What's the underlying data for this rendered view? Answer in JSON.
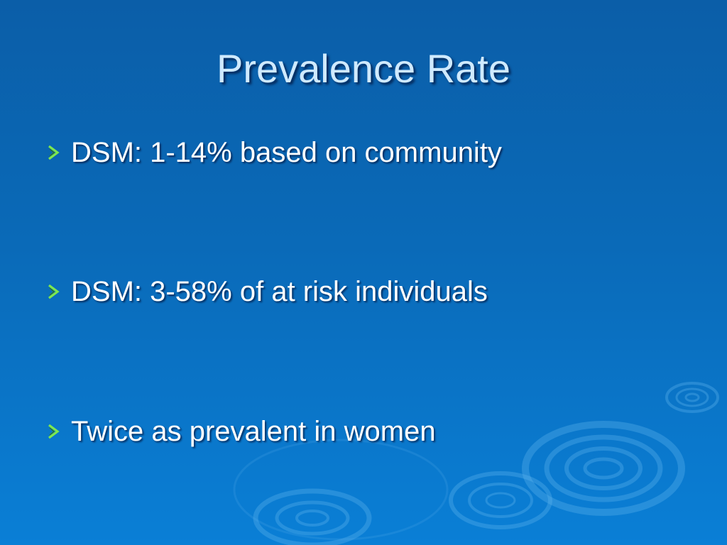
{
  "slide": {
    "title": "Prevalence Rate",
    "bullets": [
      {
        "text": "DSM:  1-14% based on community",
        "icon": "chevron-right-icon"
      },
      {
        "text": "DSM:  3-58% of at risk individuals",
        "icon": "chevron-right-icon"
      },
      {
        "text": "Twice as prevalent in women",
        "icon": "chevron-right-icon"
      }
    ]
  },
  "colors": {
    "background_top": "#0b5ea8",
    "background_bottom": "#0a7fd6",
    "title": "#cfeaff",
    "bullet_text": "#ffffff",
    "bullet_icon": "#7ee84e"
  },
  "decoration": {
    "background_motif": "water-ripple-rings"
  }
}
